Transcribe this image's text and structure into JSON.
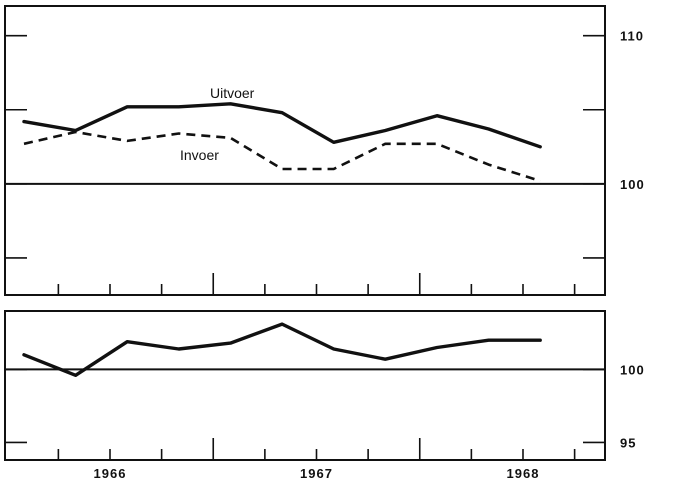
{
  "chart_data": [
    {
      "type": "line",
      "panel": "top",
      "x": [
        "1965-08",
        "1965-11",
        "1966-02",
        "1966-05",
        "1966-08",
        "1966-11",
        "1967-02",
        "1967-05",
        "1967-08",
        "1967-11",
        "1968-02"
      ],
      "series": [
        {
          "name": "Uitvoer",
          "style": "solid",
          "values": [
            104.2,
            103.6,
            105.2,
            105.2,
            105.4,
            104.8,
            102.8,
            103.6,
            104.6,
            103.7,
            102.5
          ]
        },
        {
          "name": "Invoer",
          "style": "dashed",
          "values": [
            102.7,
            103.5,
            102.9,
            103.4,
            103.1,
            101.0,
            101.0,
            102.7,
            102.7,
            101.3,
            100.2
          ]
        }
      ],
      "reference_line": 100,
      "ylim": [
        92.5,
        112.0
      ],
      "ytick_labels": [
        "110",
        "100"
      ],
      "ytick_values": [
        110,
        100
      ],
      "grid": false
    },
    {
      "type": "line",
      "panel": "bottom",
      "x": [
        "1965-08",
        "1965-11",
        "1966-02",
        "1966-05",
        "1966-08",
        "1966-11",
        "1967-02",
        "1967-05",
        "1967-08",
        "1967-11",
        "1968-02"
      ],
      "series": [
        {
          "name": "",
          "style": "solid",
          "values": [
            101.0,
            99.6,
            101.9,
            101.4,
            101.8,
            103.1,
            101.4,
            100.7,
            101.5,
            102.0,
            102.0
          ]
        }
      ],
      "reference_line": 100,
      "ylim": [
        93.8,
        104.0
      ],
      "ytick_labels": [
        "100",
        "95"
      ],
      "ytick_values": [
        100,
        95
      ],
      "grid": false
    }
  ],
  "x_axis": {
    "year_labels": [
      "1966",
      "1967",
      "1968"
    ]
  }
}
